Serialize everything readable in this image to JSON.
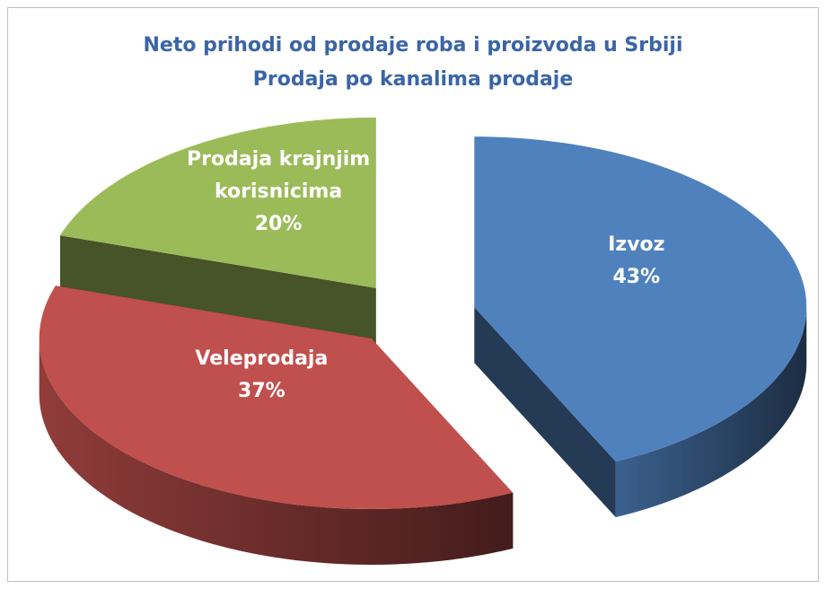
{
  "chart_data": {
    "type": "pie",
    "title": "Neto prihodi od prodaje roba i proizvoda u Srbiji",
    "subtitle": "Prodaja po kanalima prodaje",
    "categories": [
      "Izvoz",
      "Veleprodaja",
      "Prodaja krajnjim korisnicima"
    ],
    "values": [
      43,
      37,
      20
    ],
    "value_labels": [
      "43%",
      "37%",
      "20%"
    ],
    "colors": [
      "#4f81bd",
      "#c0504d",
      "#9bbb59"
    ]
  }
}
